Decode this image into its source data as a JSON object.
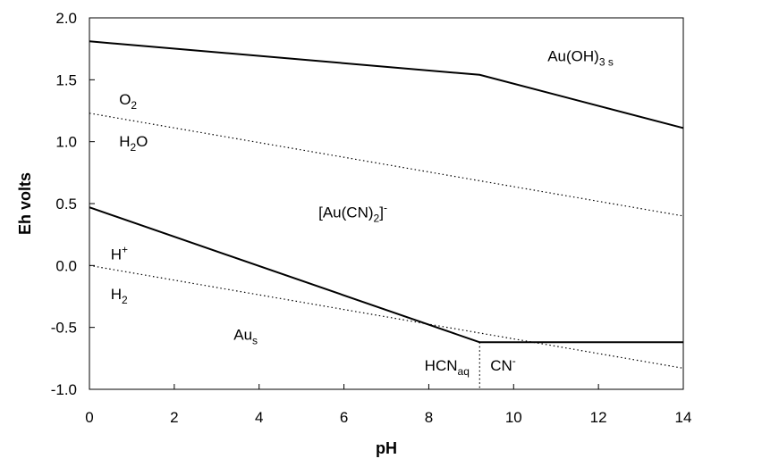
{
  "chart_data": {
    "type": "line",
    "xlabel": "pH",
    "ylabel": "Eh volts",
    "xlim": [
      0,
      14
    ],
    "ylim": [
      -1.0,
      2.0
    ],
    "xticks": [
      0,
      2,
      4,
      6,
      8,
      10,
      12,
      14
    ],
    "yticks": [
      -1.0,
      -0.5,
      0.0,
      0.5,
      1.0,
      1.5,
      2.0
    ],
    "xtick_labels": [
      "0",
      "2",
      "4",
      "6",
      "8",
      "10",
      "12",
      "14"
    ],
    "ytick_labels": [
      "-1.0",
      "-0.5",
      "0.0",
      "0.5",
      "1.0",
      "1.5",
      "2.0"
    ],
    "grid": false,
    "series": [
      {
        "style": "solid",
        "points": [
          [
            0,
            1.81
          ],
          [
            9.2,
            1.54
          ],
          [
            14,
            1.11
          ]
        ]
      },
      {
        "style": "solid",
        "points": [
          [
            0,
            0.47
          ],
          [
            9.2,
            -0.62
          ],
          [
            14,
            -0.62
          ]
        ]
      },
      {
        "style": "dotted",
        "points": [
          [
            0,
            1.23
          ],
          [
            14,
            0.4
          ]
        ]
      },
      {
        "style": "dotted",
        "points": [
          [
            0,
            0.0
          ],
          [
            14,
            -0.83
          ]
        ]
      },
      {
        "style": "dotted",
        "points": [
          [
            9.2,
            -0.62
          ],
          [
            9.2,
            -1.0
          ]
        ]
      }
    ],
    "annotations": [
      {
        "main": "Au(OH)",
        "sub": "3 s",
        "x": 10.8,
        "y": 1.65
      },
      {
        "main": "O",
        "sub": "2",
        "x": 0.7,
        "y": 1.3
      },
      {
        "main": "H",
        "sub": "2",
        "tail": "O",
        "x": 0.7,
        "y": 0.96
      },
      {
        "main": "[Au(CN)",
        "sub": "2",
        "tail": "]",
        "sup": "-",
        "x": 5.4,
        "y": 0.39
      },
      {
        "main": "H",
        "sup": "+",
        "x": 0.5,
        "y": 0.05
      },
      {
        "main": "H",
        "sub": "2",
        "x": 0.5,
        "y": -0.27
      },
      {
        "main": "Au",
        "sub": "s",
        "x": 3.4,
        "y": -0.6
      },
      {
        "main": "HCN",
        "sub": "aq",
        "x": 7.9,
        "y": -0.85
      },
      {
        "main": "CN",
        "sup": "-",
        "x": 9.45,
        "y": -0.85
      }
    ]
  }
}
